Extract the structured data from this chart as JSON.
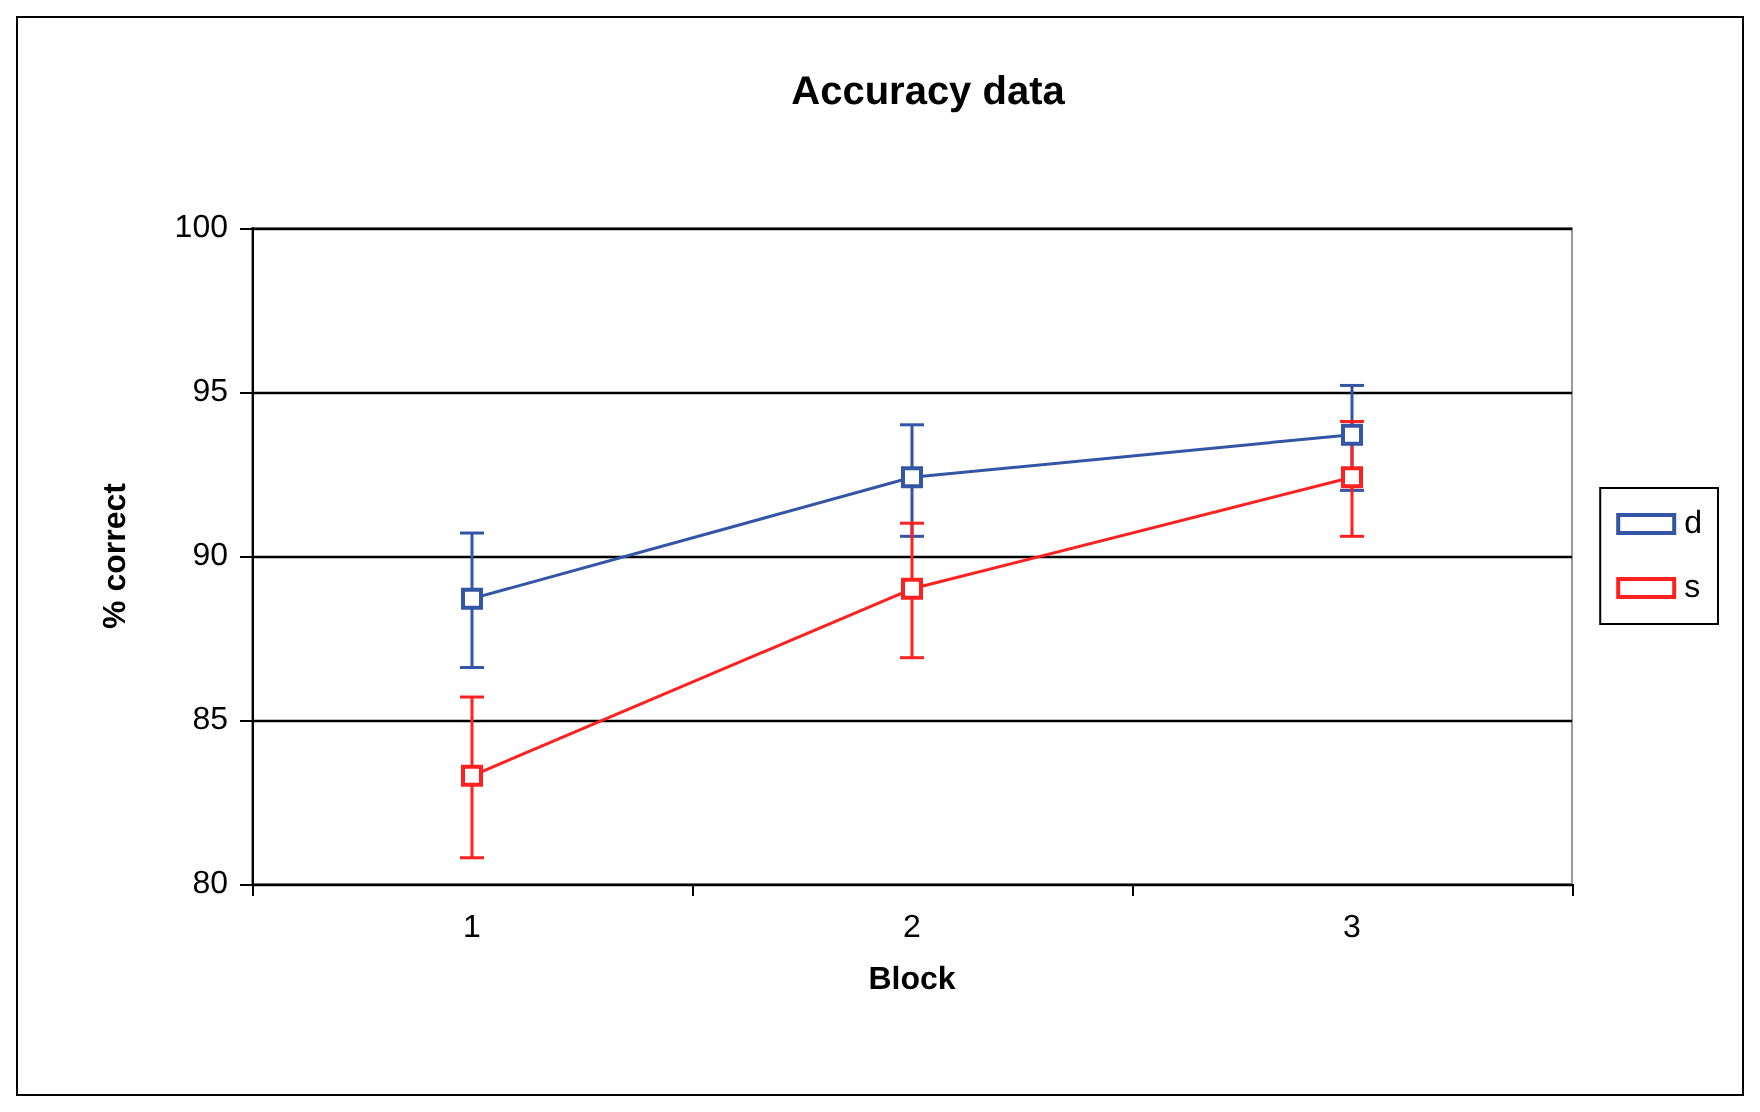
{
  "chart_data": {
    "type": "line",
    "title": "Accuracy data",
    "xlabel": "Block",
    "ylabel": "% correct",
    "categories": [
      "1",
      "2",
      "3"
    ],
    "series": [
      {
        "name": "d",
        "color": "#3355a5",
        "values": [
          88.7,
          92.4,
          93.7
        ],
        "errors": [
          [
            86.6,
            90.7
          ],
          [
            90.6,
            94.0
          ],
          [
            92.0,
            95.2
          ]
        ]
      },
      {
        "name": "s",
        "color": "#ff2020",
        "values": [
          83.3,
          89.0,
          92.4
        ],
        "errors": [
          [
            80.8,
            85.7
          ],
          [
            86.9,
            91.0
          ],
          [
            90.6,
            94.1
          ]
        ]
      }
    ],
    "ylim": [
      80,
      100
    ],
    "yticks": [
      80,
      85,
      90,
      95,
      100
    ],
    "grid": "y",
    "legend": "right",
    "marker": "square",
    "line_style": "solid"
  }
}
